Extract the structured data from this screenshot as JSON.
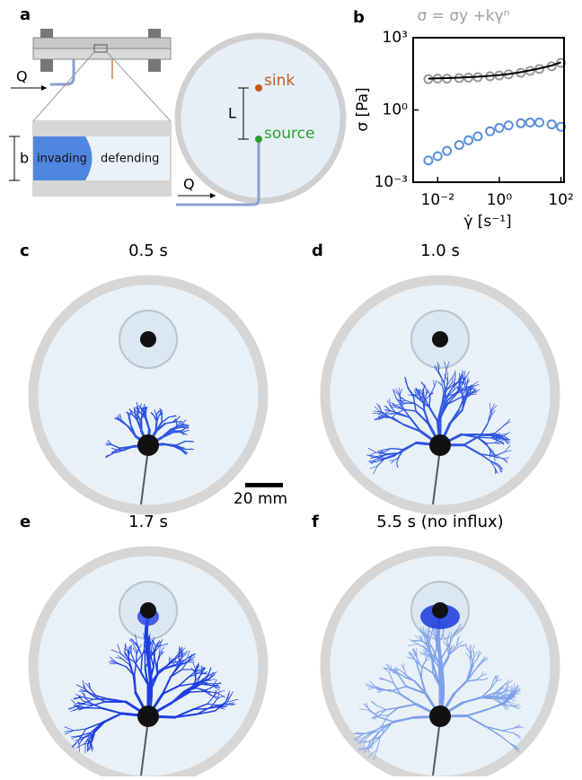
{
  "panel_labels": [
    "a",
    "b",
    "c",
    "d",
    "e",
    "f"
  ],
  "schematic": {
    "flow_label_left": "Q",
    "invading": "invading",
    "defending": "defending",
    "gap": "b",
    "distance": "L",
    "sink": "sink",
    "source": "source",
    "flow_label_cell": "Q"
  },
  "chart_data": {
    "type": "scatter",
    "title": "σ = σy +kγⁿ",
    "x_label": "γ̇ [s⁻¹]",
    "y_label": "σ [Pa]",
    "log_x": true,
    "log_y": true,
    "x": [
      0.005,
      0.01,
      0.02,
      0.05,
      0.1,
      0.2,
      0.5,
      1,
      2,
      5,
      10,
      20,
      50,
      100
    ],
    "series": [
      {
        "color": "#9a9a9a",
        "style": "markers",
        "values": [
          19,
          20,
          20,
          21,
          22,
          23,
          25,
          27,
          30,
          35,
          42,
          50,
          65,
          90
        ]
      },
      {
        "color": "#5b8fd9",
        "style": "markers",
        "values": [
          0.008,
          0.012,
          0.02,
          0.035,
          0.055,
          0.08,
          0.13,
          0.18,
          0.23,
          0.28,
          0.3,
          0.3,
          0.25,
          0.2
        ]
      },
      {
        "color": "#000000",
        "style": "line",
        "values": [
          20,
          20.5,
          21,
          22,
          23,
          24,
          26,
          28,
          31,
          37,
          44,
          53,
          70,
          95
        ]
      }
    ],
    "xlim": [
      0.0016,
      126
    ],
    "ylim": [
      0.001,
      1000
    ],
    "xticks": [
      {
        "value": 0.01,
        "label": "10⁻²"
      },
      {
        "value": 1,
        "label": "10⁰"
      },
      {
        "value": 100,
        "label": "10²"
      }
    ],
    "yticks": [
      {
        "value": 0.001,
        "label": "10⁻³"
      },
      {
        "value": 1,
        "label": "10⁰"
      },
      {
        "value": 1000,
        "label": "10³"
      }
    ]
  },
  "photo_titles": [
    "0.5 s",
    "1.0 s",
    "1.7 s",
    "5.5 s (no influx)"
  ],
  "scale_bar": "20 mm"
}
